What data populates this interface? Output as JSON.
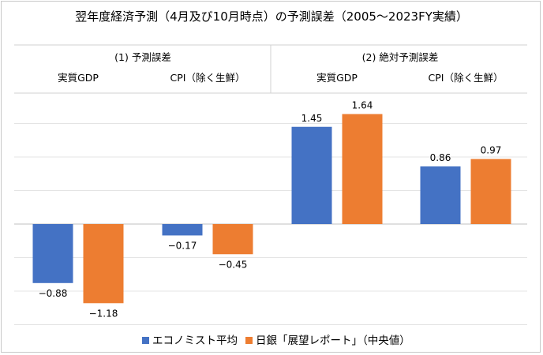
{
  "chart_data": {
    "type": "bar",
    "title": "翌年度経済予測（4月及び10月時点）の予測誤差（2005～2023FY実績）",
    "groups": [
      "(1) 予測誤差",
      "(2) 絶対予測誤差"
    ],
    "categories": [
      "実質GDP",
      "CPI（除く生鮮）",
      "実質GDP",
      "CPI（除く生鮮）"
    ],
    "series": [
      {
        "name": "エコノミスト平均",
        "color": "#4472C4",
        "values": [
          -0.88,
          -0.17,
          1.45,
          0.86
        ],
        "labels": [
          "−0.88",
          "−0.17",
          "1.45",
          "0.86"
        ]
      },
      {
        "name": "日銀「展望レポート」（中央値）",
        "color": "#ED7D31",
        "values": [
          -1.18,
          -0.45,
          1.64,
          0.97
        ],
        "labels": [
          "−1.18",
          "−0.45",
          "1.64",
          "0.97"
        ]
      }
    ],
    "ylim": [
      -1.5,
      1.5
    ],
    "grid": true,
    "legend": "bottom"
  }
}
